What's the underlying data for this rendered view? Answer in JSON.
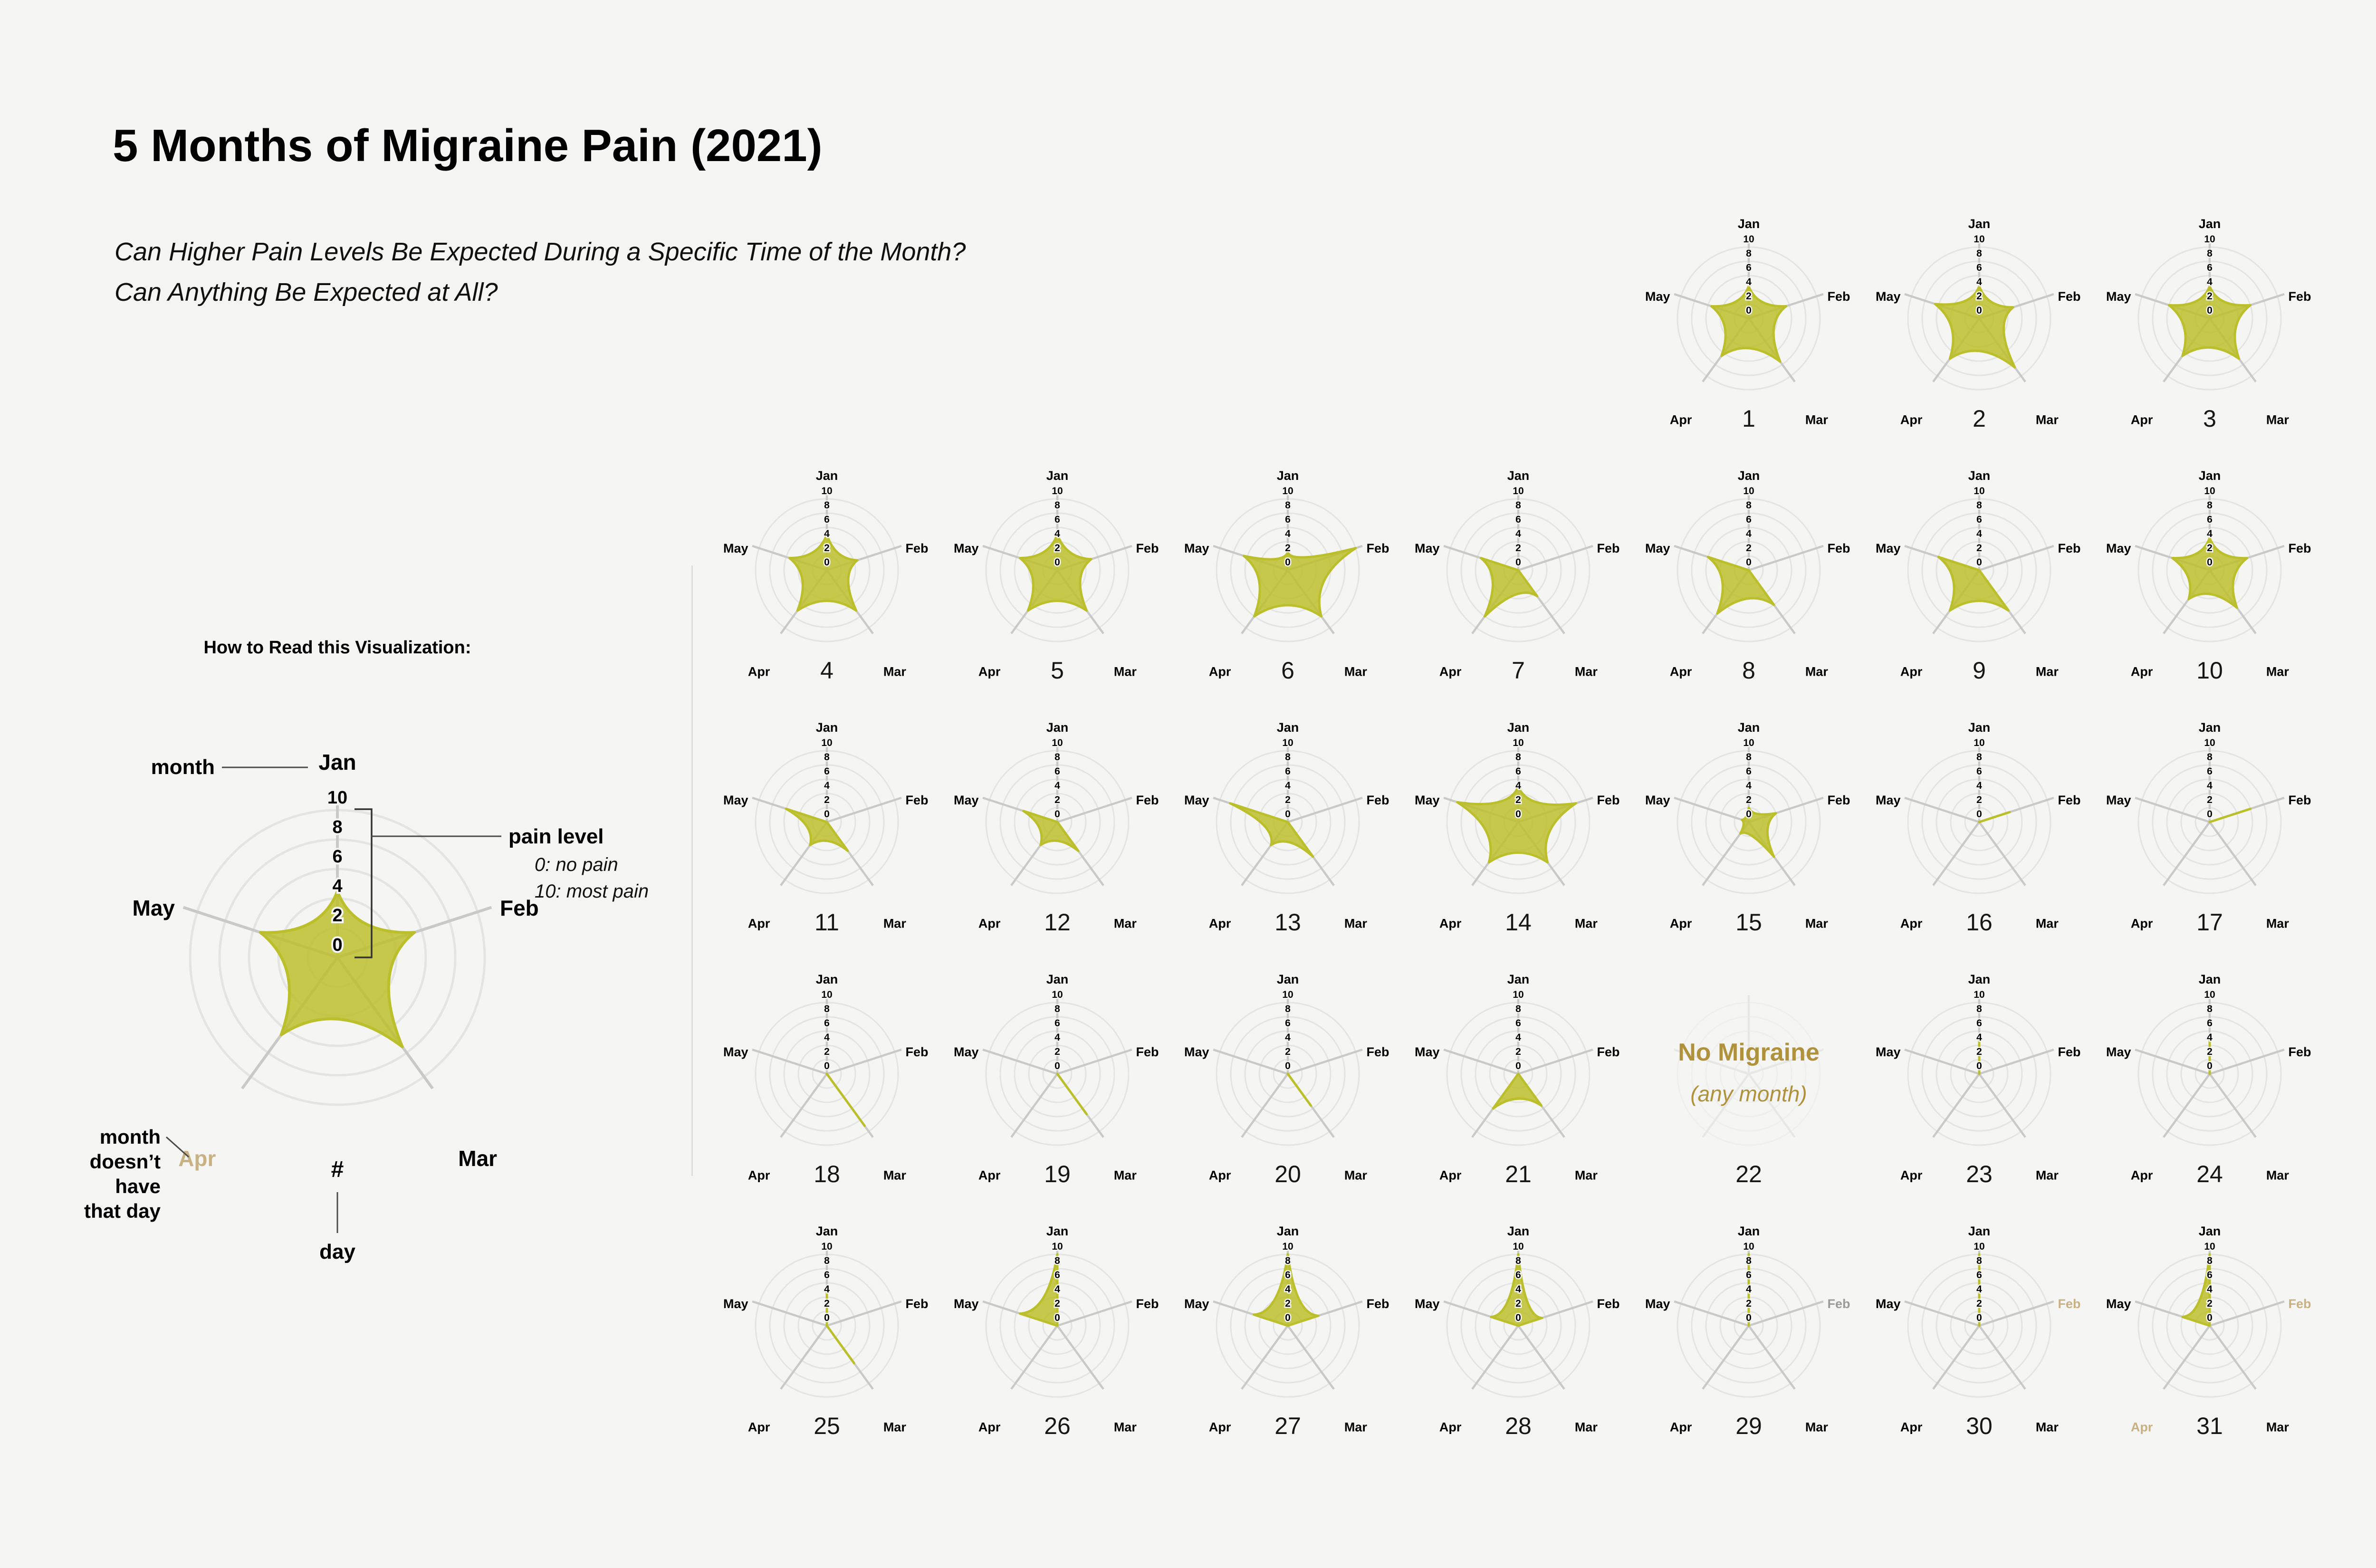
{
  "title": "5 Months of Migraine Pain (2021)",
  "subtitle": [
    "Can Higher Pain Levels Be Expected During a Specific Time of the Month?",
    "Can Anything Be Expected at All?"
  ],
  "legend": {
    "heading": "How to Read this Visualization:",
    "example_values": [
      4.5,
      5.5,
      7.5,
      6.5,
      5.5
    ],
    "month_label_overrides": {
      "Apr": "tan"
    },
    "annotations": {
      "month": "month",
      "pain_level": "pain level",
      "pain_min": "0: no pain",
      "pain_max": "10: most pain",
      "missing_l1": "month",
      "missing_l2": "doesn’t",
      "missing_l3": "have",
      "missing_l4": "that day",
      "day_symbol": "#",
      "day_word": "day"
    }
  },
  "chart_data": {
    "type": "radar-small-multiples",
    "axes": [
      "Jan",
      "Feb",
      "Mar",
      "Apr",
      "May"
    ],
    "scale": {
      "min": 0,
      "max": 10,
      "ticks": [
        10,
        8,
        6,
        4,
        2,
        0
      ]
    },
    "ylabel_meaning": "pain level (0 no pain – 10 most pain)",
    "no_migraine_label": "No Migraine",
    "no_migraine_sublabel": "(any month)",
    "days": [
      {
        "day": 1,
        "values": [
          4.5,
          5.5,
          7.5,
          6.5,
          5.5
        ]
      },
      {
        "day": 2,
        "values": [
          4.5,
          5.0,
          8.5,
          7.0,
          6.5
        ]
      },
      {
        "day": 3,
        "values": [
          4.5,
          6.0,
          7.0,
          6.5,
          6.0
        ]
      },
      {
        "day": 4,
        "values": [
          5.0,
          4.5,
          7.0,
          7.0,
          5.5
        ]
      },
      {
        "day": 5,
        "values": [
          5.0,
          5.0,
          7.0,
          7.0,
          5.5
        ]
      },
      {
        "day": 6,
        "values": [
          2.5,
          10.0,
          8.0,
          8.0,
          6.5
        ]
      },
      {
        "day": 7,
        "values": [
          0,
          0,
          4.5,
          8.0,
          5.5
        ]
      },
      {
        "day": 8,
        "values": [
          0,
          0,
          6.0,
          7.5,
          6.0
        ]
      },
      {
        "day": 9,
        "values": [
          0,
          0,
          7.0,
          7.0,
          6.0
        ]
      },
      {
        "day": 10,
        "values": [
          4.5,
          5.5,
          6.5,
          5.0,
          5.5
        ]
      },
      {
        "day": 11,
        "values": [
          0,
          0,
          5.0,
          4.0,
          6.0
        ]
      },
      {
        "day": 12,
        "values": [
          0,
          0,
          5.0,
          4.0,
          5.0
        ]
      },
      {
        "day": 13,
        "values": [
          0,
          0,
          6.0,
          4.0,
          8.5
        ]
      },
      {
        "day": 14,
        "values": [
          5.0,
          8.5,
          7.0,
          7.0,
          9.0
        ]
      },
      {
        "day": 15,
        "values": [
          2.0,
          4.0,
          6.0,
          2.0,
          1.0
        ]
      },
      {
        "day": 16,
        "values": [
          0,
          4.5,
          0,
          0,
          0
        ]
      },
      {
        "day": 17,
        "values": [
          0,
          6.0,
          0,
          0,
          0
        ]
      },
      {
        "day": 18,
        "values": [
          0,
          0,
          9.0,
          0,
          0
        ]
      },
      {
        "day": 19,
        "values": [
          0,
          0,
          7.0,
          0,
          0
        ]
      },
      {
        "day": 20,
        "values": [
          0,
          0,
          5.5,
          0,
          0
        ]
      },
      {
        "day": 21,
        "values": [
          0,
          0,
          5.5,
          6.0,
          0
        ]
      },
      {
        "day": 22,
        "no_migraine": true
      },
      {
        "day": 23,
        "values": [
          5.0,
          0,
          0,
          0,
          0
        ]
      },
      {
        "day": 24,
        "values": [
          5.5,
          0,
          0,
          0,
          0
        ]
      },
      {
        "day": 25,
        "values": [
          5.0,
          0,
          6.5,
          0,
          0
        ]
      },
      {
        "day": 26,
        "values": [
          10.0,
          0,
          0,
          0,
          5.5
        ]
      },
      {
        "day": 27,
        "values": [
          10.0,
          4.5,
          0,
          0,
          5.0
        ]
      },
      {
        "day": 28,
        "values": [
          10.0,
          3.5,
          0,
          0,
          4.0
        ]
      },
      {
        "day": 29,
        "values": [
          10.0,
          0,
          0,
          0,
          0
        ],
        "month_label_overrides": {
          "Feb": "gray"
        }
      },
      {
        "day": 30,
        "values": [
          10.0,
          0,
          0,
          0,
          0
        ],
        "month_label_overrides": {
          "Feb": "tan"
        }
      },
      {
        "day": 31,
        "values": [
          10.0,
          0,
          0,
          0,
          4.0
        ],
        "month_label_overrides": {
          "Feb": "tan",
          "Apr": "tan"
        }
      }
    ]
  },
  "colors": {
    "background": "#f5f5f3",
    "fill": "#bcbf2c",
    "ring": "#e4e4e3",
    "spoke": "#c9c9c8",
    "text": "#000000",
    "day_number": "#161616",
    "tan": "#c9b183",
    "gray": "#9b9b9b",
    "gold": "#b0913c"
  }
}
